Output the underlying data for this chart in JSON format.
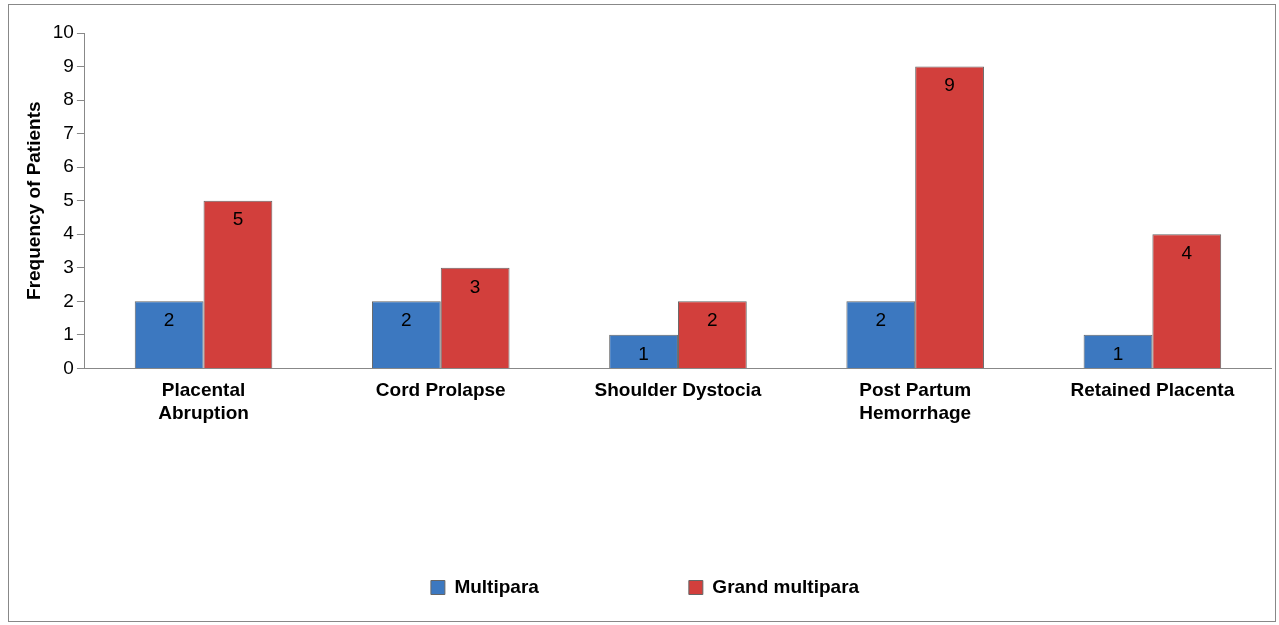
{
  "chart_data": {
    "type": "bar",
    "ylabel": "Frequency of Patients",
    "categories": [
      "Placental Abruption",
      "Cord Prolapse",
      "Shoulder Dystocia",
      "Post Partum Hemorrhage",
      "Retained Placenta"
    ],
    "series": [
      {
        "name": "Multipara",
        "color": "#3c78c0",
        "values": [
          2,
          2,
          1,
          2,
          1
        ]
      },
      {
        "name": "Grand multipara",
        "color": "#d23f3c",
        "values": [
          5,
          3,
          2,
          9,
          4
        ]
      }
    ],
    "ylim": [
      0,
      10
    ],
    "yticks": [
      0,
      1,
      2,
      3,
      4,
      5,
      6,
      7,
      8,
      9,
      10
    ],
    "grid": false,
    "legend": "bottom",
    "data_labels": true
  }
}
